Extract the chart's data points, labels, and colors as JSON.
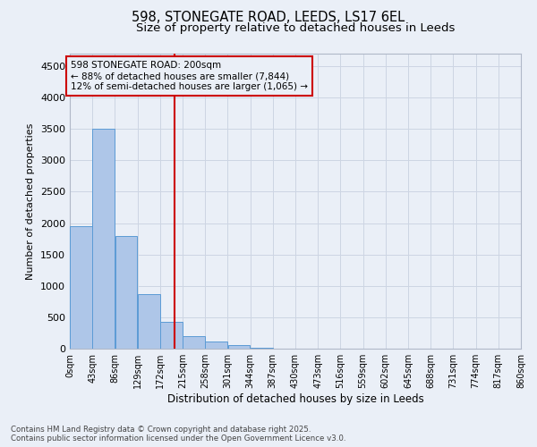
{
  "title": "598, STONEGATE ROAD, LEEDS, LS17 6EL",
  "subtitle": "Size of property relative to detached houses in Leeds",
  "xlabel": "Distribution of detached houses by size in Leeds",
  "ylabel": "Number of detached properties",
  "bin_labels": [
    "0sqm",
    "43sqm",
    "86sqm",
    "129sqm",
    "172sqm",
    "215sqm",
    "258sqm",
    "301sqm",
    "344sqm",
    "387sqm",
    "430sqm",
    "473sqm",
    "516sqm",
    "559sqm",
    "602sqm",
    "645sqm",
    "688sqm",
    "731sqm",
    "774sqm",
    "817sqm",
    "860sqm"
  ],
  "bin_edges": [
    0,
    43,
    86,
    129,
    172,
    215,
    258,
    301,
    344,
    387,
    430,
    473,
    516,
    559,
    602,
    645,
    688,
    731,
    774,
    817,
    860
  ],
  "bar_values": [
    1950,
    3500,
    1800,
    870,
    430,
    200,
    120,
    60,
    10,
    5,
    2,
    0,
    0,
    0,
    0,
    0,
    0,
    0,
    0,
    0
  ],
  "bar_color": "#aec6e8",
  "bar_edgecolor": "#5b9bd5",
  "vline_color": "#cc0000",
  "vline_x": 200,
  "annotation_text": "598 STONEGATE ROAD: 200sqm\n← 88% of detached houses are smaller (7,844)\n12% of semi-detached houses are larger (1,065) →",
  "annotation_box_color": "#cc0000",
  "annotation_fontsize": 7.5,
  "ylim": [
    0,
    4700
  ],
  "yticks": [
    0,
    500,
    1000,
    1500,
    2000,
    2500,
    3000,
    3500,
    4000,
    4500
  ],
  "grid_color": "#cdd5e3",
  "background_color": "#eaeff7",
  "footer_text": "Contains HM Land Registry data © Crown copyright and database right 2025.\nContains public sector information licensed under the Open Government Licence v3.0.",
  "title_fontsize": 10.5,
  "subtitle_fontsize": 9.5,
  "ylabel_fontsize": 8,
  "xlabel_fontsize": 8.5
}
